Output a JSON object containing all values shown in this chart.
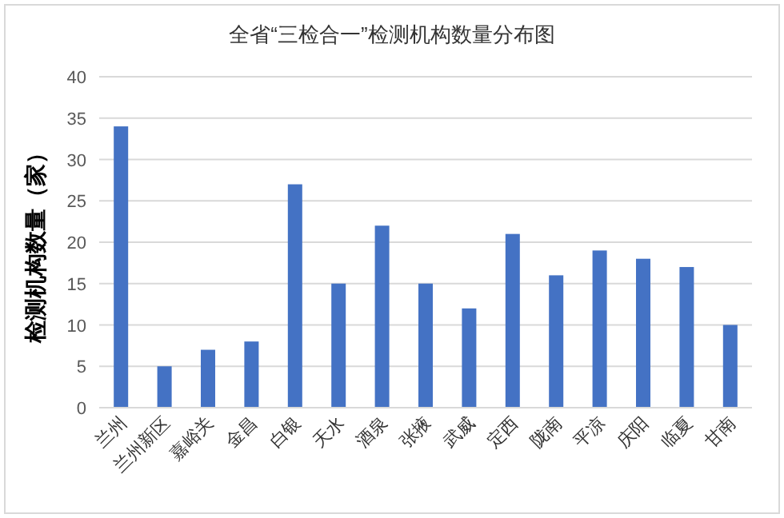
{
  "chart_data": {
    "type": "bar",
    "title": "全省“三检合一”检测机构数量分布图",
    "ylabel": "检测机构数量（家）",
    "categories": [
      "兰州",
      "兰州新区",
      "嘉峪关",
      "金昌",
      "白银",
      "天水",
      "酒泉",
      "张掖",
      "武威",
      "定西",
      "陇南",
      "平凉",
      "庆阳",
      "临夏",
      "甘南"
    ],
    "values": [
      34,
      5,
      7,
      8,
      27,
      15,
      22,
      15,
      12,
      21,
      16,
      19,
      18,
      17,
      10
    ],
    "color": "#4472c4",
    "ylim": [
      0,
      40
    ],
    "yticks": [
      0,
      5,
      10,
      15,
      20,
      25,
      30,
      35,
      40
    ],
    "grid": "y"
  }
}
